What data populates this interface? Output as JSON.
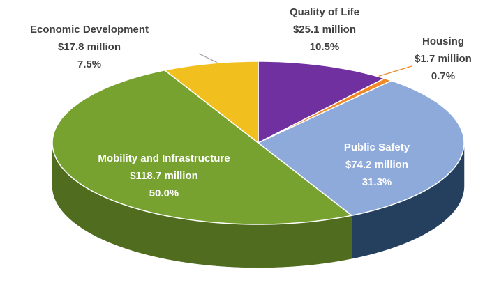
{
  "chart_data": {
    "type": "pie3d",
    "categories": [
      "Quality of Life",
      "Housing",
      "Public Safety",
      "Mobility and Infrastructure",
      "Economic Development"
    ],
    "amount_labels": [
      "$25.1 million",
      "$1.7 million",
      "$74.2 million",
      "$118.7 million",
      "$17.8 million"
    ],
    "values": [
      10.5,
      0.7,
      31.3,
      50.0,
      7.5
    ],
    "value_labels": [
      "10.5%",
      "0.7%",
      "31.3%",
      "50.0%",
      "7.5%"
    ],
    "colors": [
      "#7030a0",
      "#f08a28",
      "#8eaadb",
      "#77a22f",
      "#f2c01e"
    ],
    "side_colors": [
      "#4a1f6c",
      "#a85a18",
      "#25405f",
      "#506d1f",
      "#a88510"
    ]
  }
}
